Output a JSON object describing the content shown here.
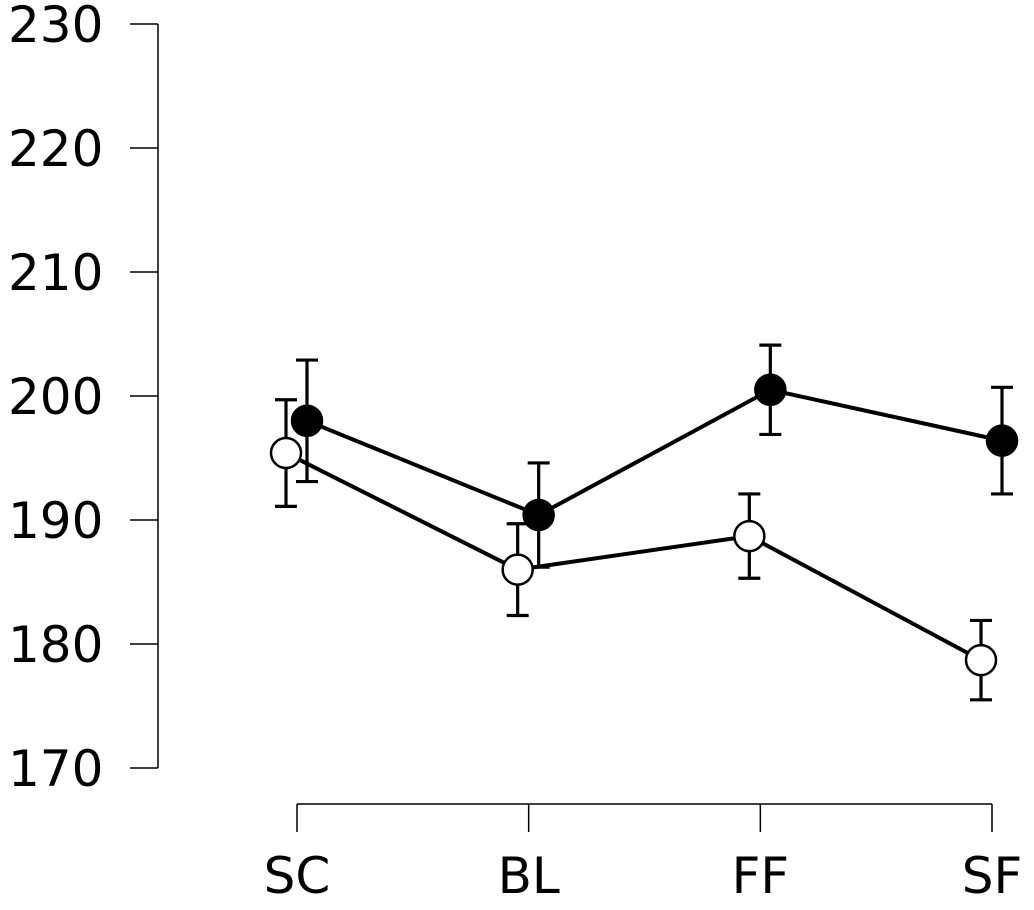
{
  "chart_data": {
    "type": "line",
    "title": "",
    "xlabel": "",
    "ylabel": "",
    "categories": [
      "SC",
      "BL",
      "FF",
      "SF"
    ],
    "ylim": [
      170,
      230
    ],
    "yticks": [
      170,
      180,
      190,
      200,
      210,
      220,
      230
    ],
    "grid": false,
    "legend": "none",
    "series": [
      {
        "marker": "filled-circle",
        "color": "#000000",
        "values": [
          198.0,
          190.4,
          200.5,
          196.4
        ],
        "error": [
          4.9,
          4.2,
          3.6,
          4.3
        ]
      },
      {
        "marker": "open-circle",
        "color": "#000000",
        "values": [
          195.4,
          186.0,
          188.7,
          178.7
        ],
        "error": [
          4.3,
          3.7,
          3.4,
          3.2
        ]
      }
    ]
  }
}
